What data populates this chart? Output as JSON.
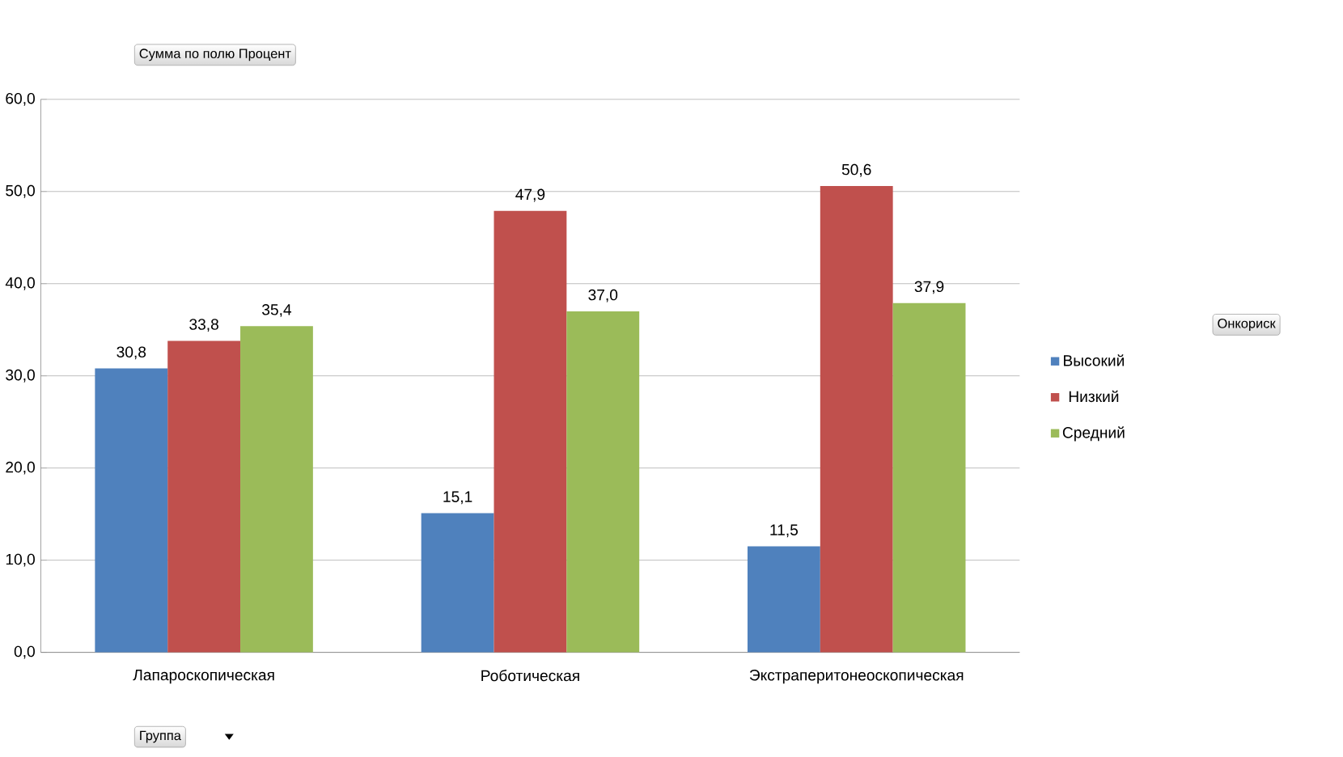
{
  "chart_data": {
    "type": "bar",
    "ylabel": "Сумма по полю Процент",
    "xlabel": "Группа",
    "legend_title": "Онкориск",
    "categories": [
      "Лапароскопическая",
      "Роботическая",
      "Экстраперитонеоскопическая"
    ],
    "series": [
      {
        "name": "Высокий",
        "color": "#4f81bd",
        "values": [
          30.8,
          15.1,
          11.5
        ],
        "value_labels": [
          "30,8",
          "15,1",
          "11,5"
        ]
      },
      {
        "name": "Низкий",
        "color": "#c0504d",
        "values": [
          33.8,
          47.9,
          50.6
        ],
        "value_labels": [
          "33,8",
          "47,9",
          "50,6"
        ]
      },
      {
        "name": "Средний",
        "color": "#9bbb59",
        "values": [
          35.4,
          37.0,
          37.9
        ],
        "value_labels": [
          "35,4",
          "37,0",
          "37,9"
        ]
      }
    ],
    "ylim": [
      0,
      60
    ],
    "yticks": [
      {
        "value": 0,
        "label": "0,0"
      },
      {
        "value": 10,
        "label": "10,0"
      },
      {
        "value": 20,
        "label": "20,0"
      },
      {
        "value": 30,
        "label": "30,0"
      },
      {
        "value": 40,
        "label": "40,0"
      },
      {
        "value": 50,
        "label": "50,0"
      },
      {
        "value": 60,
        "label": "60,0"
      }
    ],
    "grid": "y",
    "legend": "right"
  }
}
